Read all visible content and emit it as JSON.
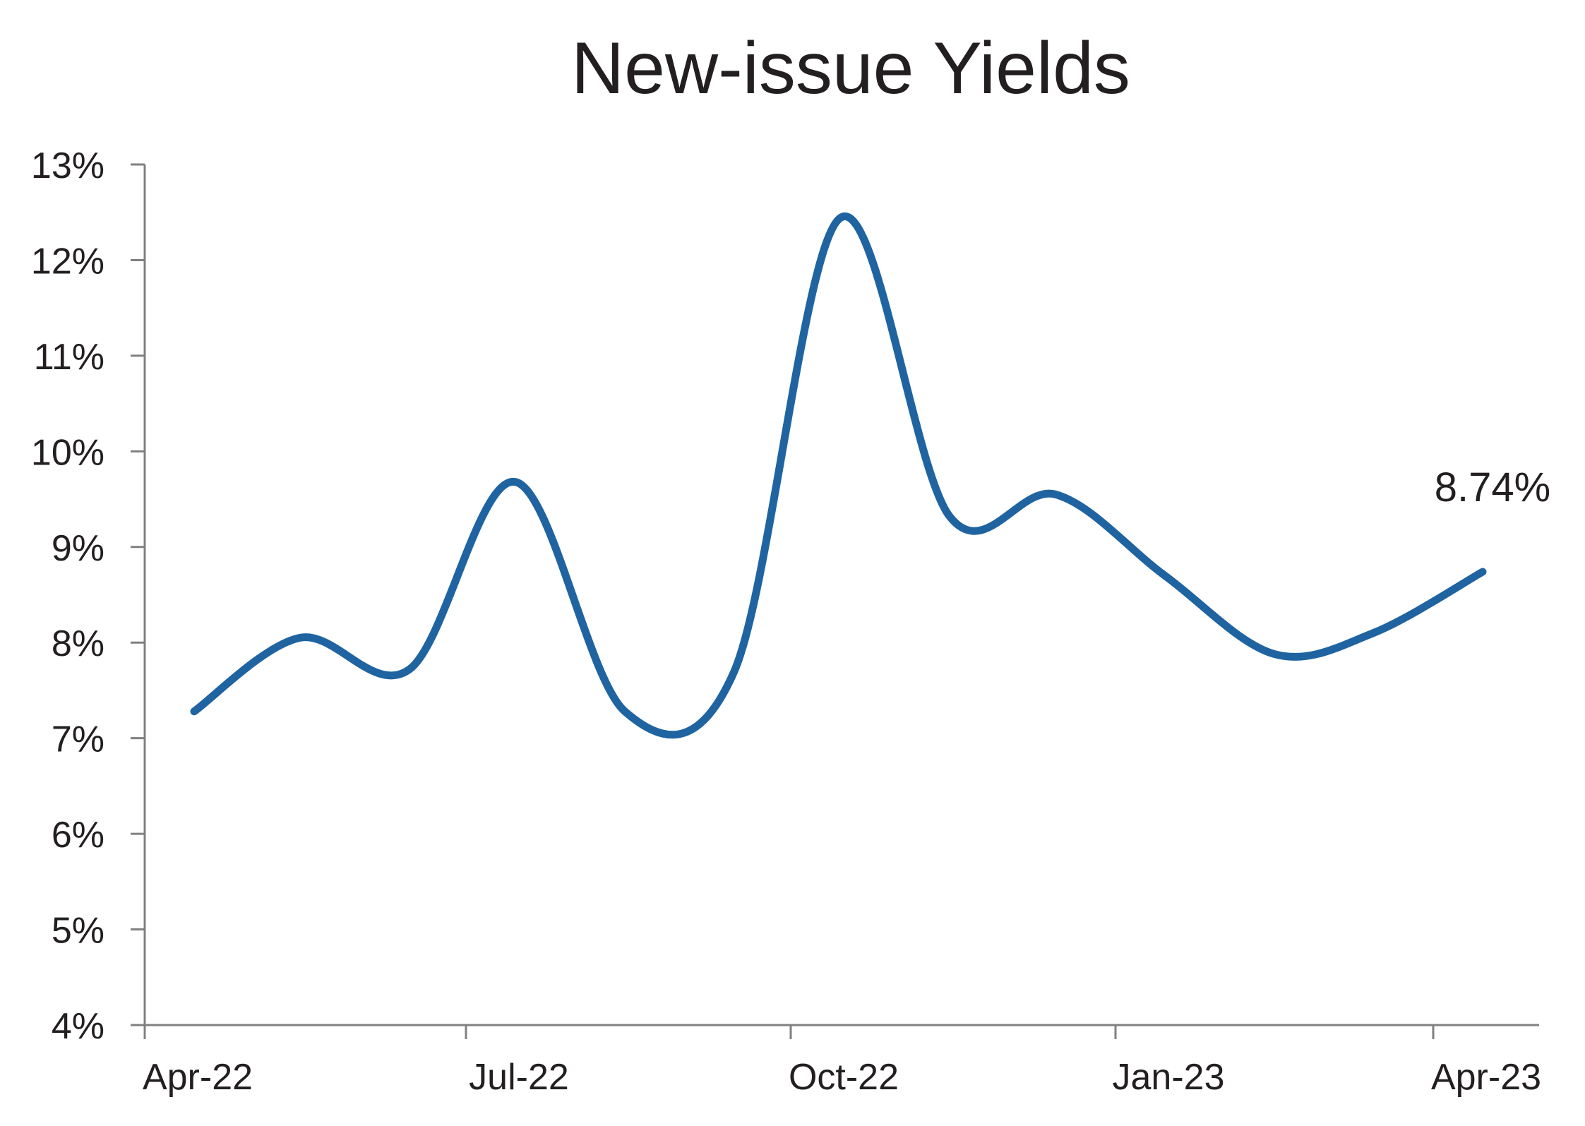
{
  "chart_data": {
    "type": "line",
    "title": "New-issue Yields",
    "xlabel": "",
    "ylabel": "",
    "ylim": [
      4,
      13
    ],
    "y_ticks": [
      "4%",
      "5%",
      "6%",
      "7%",
      "8%",
      "9%",
      "10%",
      "11%",
      "12%",
      "13%"
    ],
    "y_tick_values": [
      4,
      5,
      6,
      7,
      8,
      9,
      10,
      11,
      12,
      13
    ],
    "x_ticks": [
      "Apr-22",
      "Jul-22",
      "Oct-22",
      "Jan-23",
      "Apr-23"
    ],
    "x_tick_dates": [
      "2022-04-01",
      "2022-07-01",
      "2022-10-01",
      "2023-01-01",
      "2023-04-01"
    ],
    "grid": false,
    "legend": "none",
    "color": "#1f64a0",
    "series": [
      {
        "x": [
          "2022-04-15",
          "2022-05-15",
          "2022-06-15",
          "2022-07-15",
          "2022-08-15",
          "2022-09-15",
          "2022-10-15",
          "2022-11-15",
          "2022-12-15",
          "2023-01-15",
          "2023-02-15",
          "2023-03-15",
          "2023-04-15"
        ],
        "values": [
          7.28,
          8.05,
          7.72,
          9.68,
          7.28,
          7.7,
          12.44,
          9.32,
          9.55,
          8.7,
          7.88,
          8.1,
          8.74
        ]
      }
    ],
    "annotations": [
      {
        "text": "8.74%",
        "x": "2023-04-15",
        "y": 8.74
      }
    ]
  }
}
